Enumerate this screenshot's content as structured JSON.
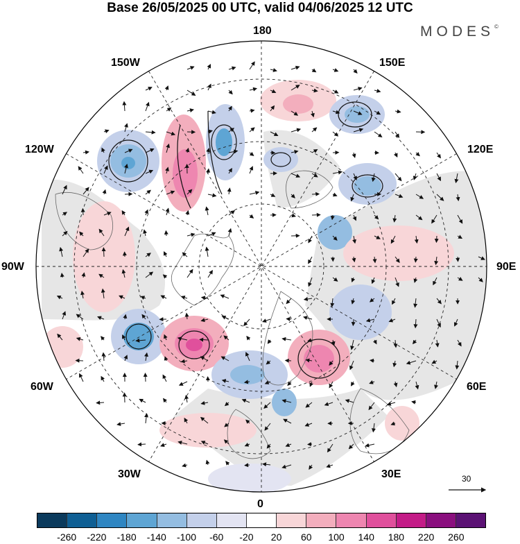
{
  "header": {
    "title": "Base 26/05/2025 00 UTC, valid 04/06/2025 12 UTC",
    "brand": "MODES",
    "brand_mark": "©"
  },
  "map": {
    "projection": "north-polar-stereographic",
    "longitude_labels": {
      "top": "180",
      "bottom": "0",
      "left": "90W",
      "right": "90E",
      "upper_left_1": "150W",
      "upper_left_2": "120W",
      "upper_right_1": "150E",
      "upper_right_2": "120E",
      "lower_left_1": "60W",
      "lower_left_2": "30W",
      "lower_right_1": "60E",
      "lower_right_2": "30E"
    },
    "wind_scale_label": "30",
    "grid": true,
    "field": "height anomaly with wind vectors"
  },
  "colorbar": {
    "colors": [
      "#0b3a5c",
      "#0f5f94",
      "#2f86c2",
      "#5ea5d4",
      "#94bde1",
      "#c4d0ea",
      "#e3e4f2",
      "#ffffff",
      "#f8d6d8",
      "#f3aebd",
      "#ee86b0",
      "#e0509c",
      "#c31c87",
      "#8a0f7e",
      "#5b1274"
    ],
    "tick_labels": [
      "-260",
      "-220",
      "-180",
      "-140",
      "-100",
      "-60",
      "-20",
      "20",
      "60",
      "100",
      "140",
      "180",
      "220",
      "260"
    ]
  }
}
